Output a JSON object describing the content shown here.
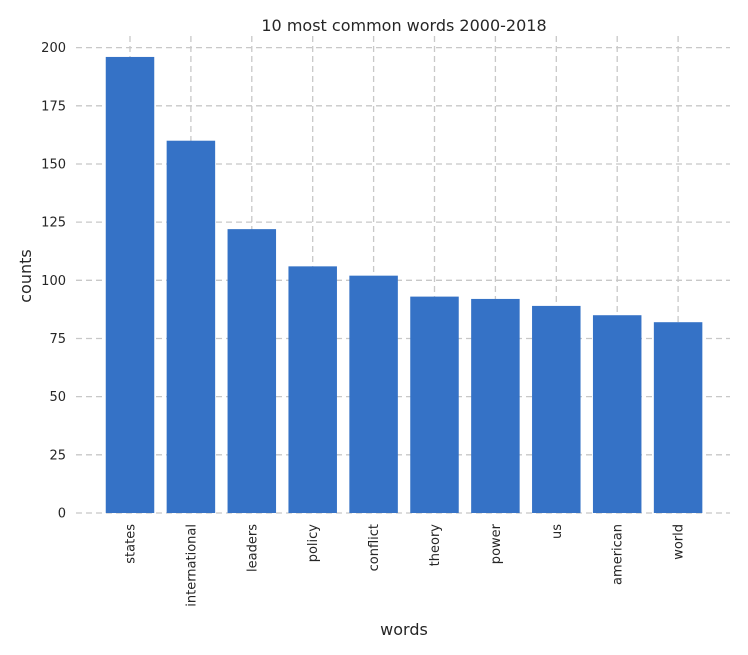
{
  "chart_data": {
    "type": "bar",
    "title": "10 most common words 2000-2018",
    "xlabel": "words",
    "ylabel": "counts",
    "categories": [
      "states",
      "international",
      "leaders",
      "policy",
      "conflict",
      "theory",
      "power",
      "us",
      "american",
      "world"
    ],
    "values": [
      196,
      160,
      122,
      106,
      102,
      93,
      92,
      89,
      85,
      82
    ],
    "ylim": [
      0,
      205
    ],
    "yticks": [
      0,
      25,
      50,
      75,
      100,
      125,
      150,
      175,
      200
    ],
    "grid": true,
    "bar_color": "#3572c6",
    "grid_color": "#c8c8c8"
  }
}
